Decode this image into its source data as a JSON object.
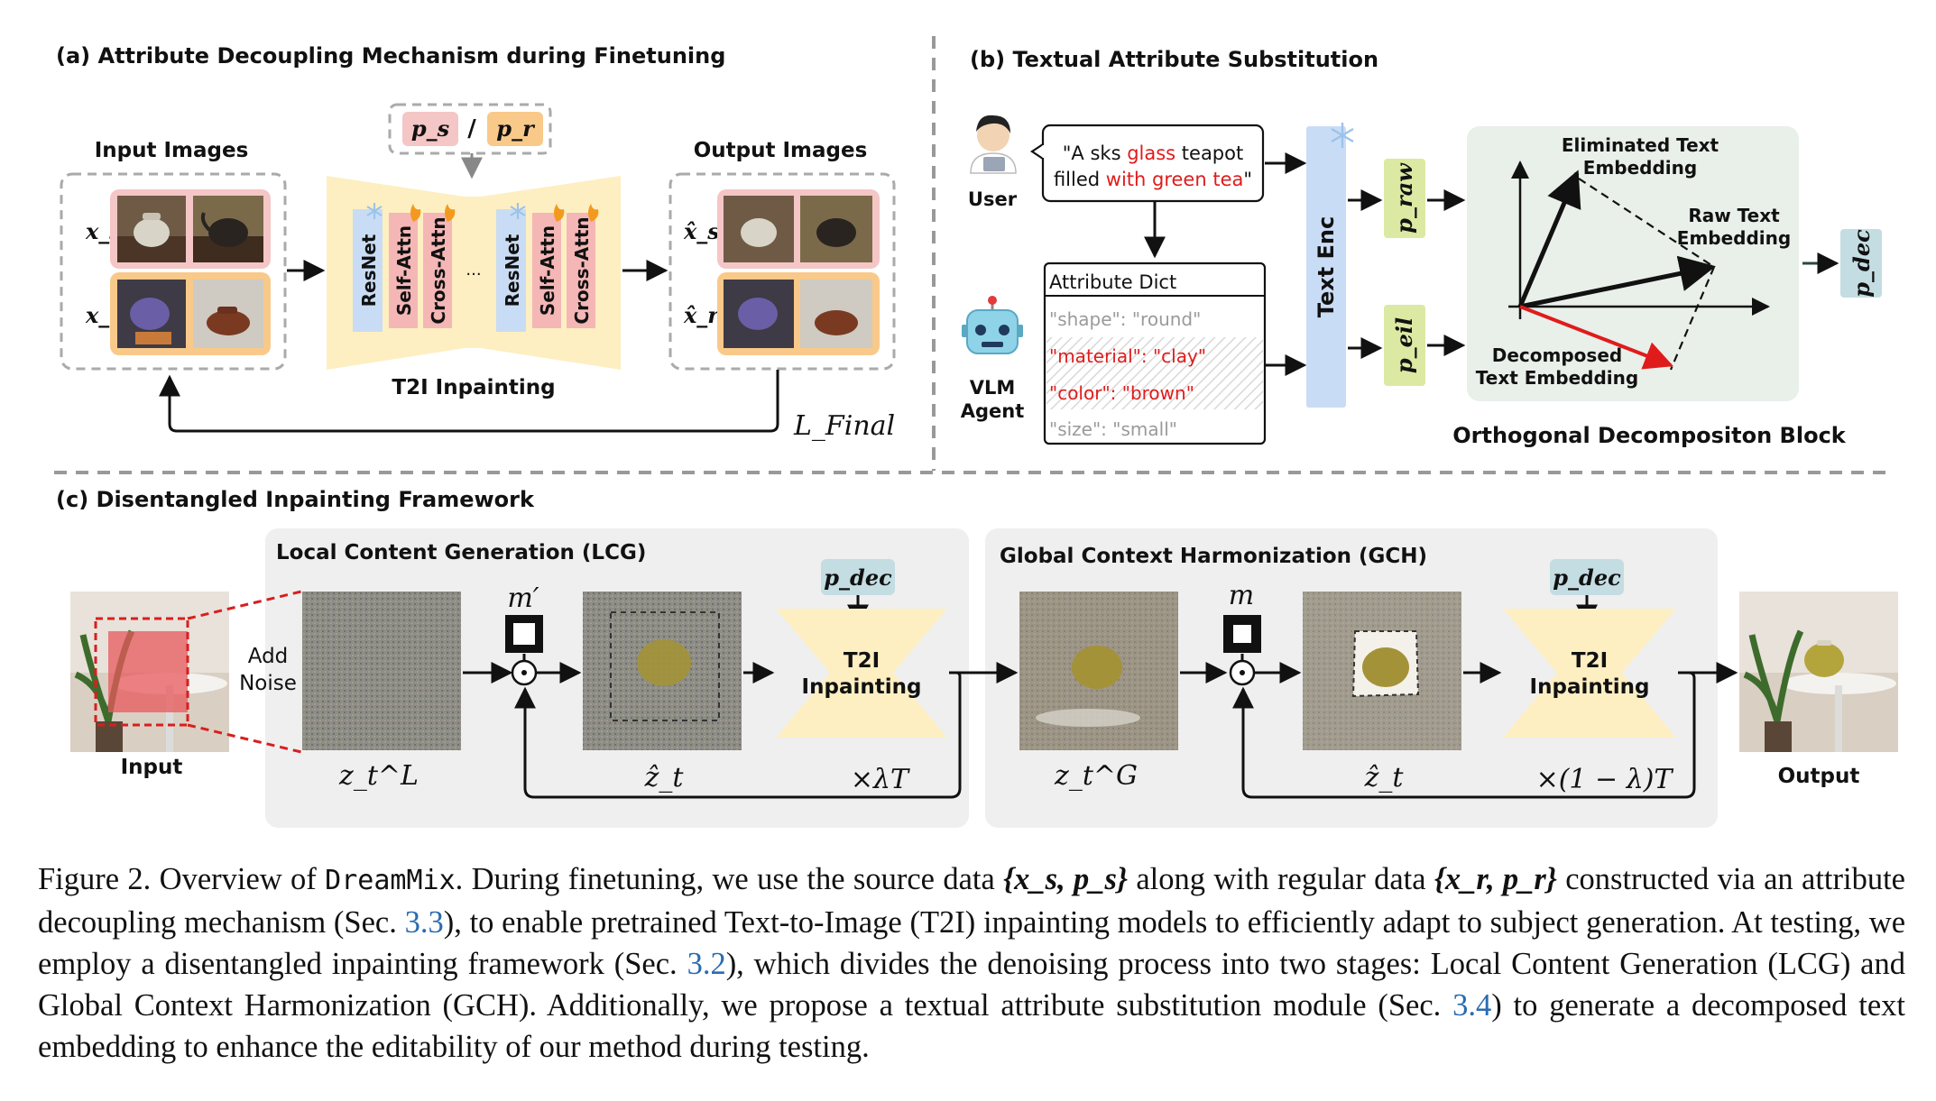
{
  "panel_a": {
    "title": "(a) Attribute Decoupling Mechanism during Finetuning",
    "input_images_label": "Input Images",
    "output_images_label": "Output Images",
    "row_labels": [
      "x_s",
      "x_r"
    ],
    "output_row_labels": [
      "x̂_s",
      "x̂_r"
    ],
    "prompt_source": "p_s",
    "prompt_sep": "/",
    "prompt_regular": "p_r",
    "blocks": [
      "ResNet",
      "Self-Attn",
      "Cross-Attn",
      "ResNet",
      "Self-Attn",
      "Cross-Attn"
    ],
    "ellipsis": "...",
    "model_label": "T2I Inpainting",
    "loss_label": "L_Final"
  },
  "panel_b": {
    "title": "(b) Textual Attribute Substitution",
    "user_label": "User",
    "prompt_parts": [
      {
        "text": "\"A sks ",
        "color": "#111111"
      },
      {
        "text": "glass",
        "color": "#e01b1b"
      },
      {
        "text": " teapot",
        "color": "#111111"
      }
    ],
    "prompt_parts_line2": [
      {
        "text": "filled ",
        "color": "#111111"
      },
      {
        "text": "with green tea",
        "color": "#e01b1b"
      },
      {
        "text": "\"",
        "color": "#111111"
      }
    ],
    "agent_label_1": "VLM",
    "agent_label_2": "Agent",
    "dict_title": "Attribute Dict",
    "dict_entries": [
      {
        "text": "\"shape\": \"round\"",
        "color": "#9a9a9a"
      },
      {
        "text": "\"material\": \"clay\"",
        "color": "#e01b1b"
      },
      {
        "text": "\"color\": \"brown\"",
        "color": "#e01b1b"
      },
      {
        "text": "\"size\": \"small\"",
        "color": "#9a9a9a"
      }
    ],
    "text_enc_label": "Text Enc",
    "p_raw": "p_raw",
    "p_eil": "p_eil",
    "eliminated_label_1": "Eliminated Text",
    "eliminated_label_2": "Embedding",
    "raw_label_1": "Raw Text",
    "raw_label_2": "Embedding",
    "decomposed_label_1": "Decomposed",
    "decomposed_label_2": "Text Embedding",
    "block_label": "Orthogonal Decompositon Block",
    "p_dec": "p_dec"
  },
  "panel_c": {
    "title": "(c) Disentangled Inpainting Framework",
    "lcg_title": "Local Content Generation (LCG)",
    "gch_title": "Global Context Harmonization (GCH)",
    "input_label": "Input",
    "output_label": "Output",
    "add_noise_1": "Add",
    "add_noise_2": "Noise",
    "mask_lcg": "m′",
    "mask_gch": "m",
    "z_lcg": "z_t^L",
    "z_gch": "z_t^G",
    "zhat": "ẑ_t",
    "p_dec": "p_dec",
    "model_1": "T2I",
    "model_2": "Inpainting",
    "repeat_lcg": "×λT",
    "repeat_gch": "×(1 − λ)T"
  },
  "caption": {
    "fig": "Figure 2. Overview of ",
    "name": "DreamMix",
    "t1": ". During finetuning, we use the source data ",
    "src": "{x_s, p_s}",
    "t2": " along with regular data ",
    "reg": "{x_r, p_r}",
    "t3": " constructed via an attribute decoupling mechanism (Sec. ",
    "r1": "3.3",
    "t4": "), to enable pretrained Text-to-Image (T2I) inpainting models to efficiently adapt to subject generation.  At testing, we employ a disentangled inpainting framework (Sec. ",
    "r2": "3.2",
    "t5": "), which divides the denoising process into two stages: Local Content Generation (LCG) and Global Context Harmonization (GCH). Additionally, we propose a textual attribute substitution module (Sec. ",
    "r3": "3.4",
    "t6": ") to generate a decomposed text embedding to enhance the editability of our method during testing."
  },
  "colors": {
    "pink": "#f5c6c6",
    "orange": "#f9c98a",
    "yellow": "#fdefc2",
    "blue": "#c9dcf5",
    "green": "#dbe9a3",
    "teal": "#c3dde2",
    "panel_gray": "#efefef",
    "red": "#e01b1b",
    "ref_blue": "#2a6cb0"
  }
}
